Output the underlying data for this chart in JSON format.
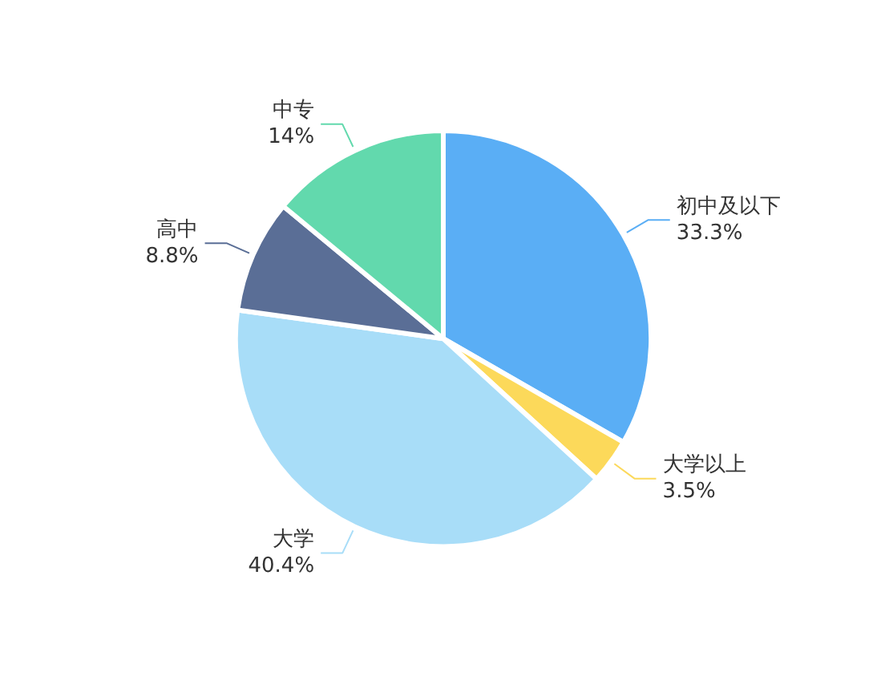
{
  "chart_data": {
    "type": "pie",
    "categories": [
      "初中及以下",
      "大学以上",
      "大学",
      "高中",
      "中专"
    ],
    "values": [
      33.3,
      3.5,
      40.4,
      8.8,
      14
    ],
    "value_labels": [
      "33.3%",
      "3.5%",
      "40.4%",
      "8.8%",
      "14%"
    ],
    "colors": [
      "#5aaef5",
      "#fcd95a",
      "#a8ddf8",
      "#5a6e96",
      "#62d9ad"
    ]
  }
}
